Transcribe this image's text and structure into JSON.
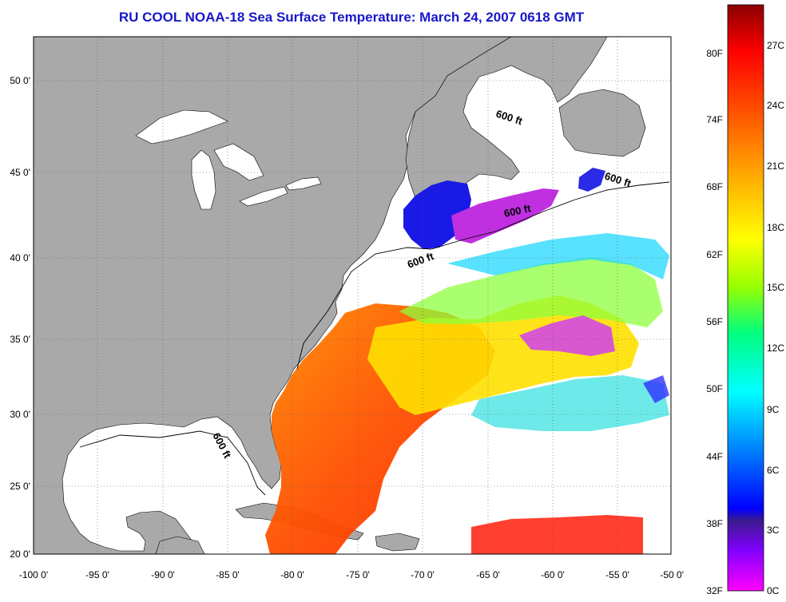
{
  "title": "RU COOL  NOAA-18  Sea Surface Temperature:  March 24, 2007 0618 GMT",
  "map": {
    "lon_ticks": [
      "-100 0'",
      "-95 0'",
      "-90 0'",
      "-85 0'",
      "-80 0'",
      "-75 0'",
      "-70 0'",
      "-65 0'",
      "-60 0'",
      "-55 0'",
      "-50 0'"
    ],
    "lat_ticks": [
      "50 0'",
      "45 0'",
      "40 0'",
      "35 0'",
      "30 0'",
      "25 0'",
      "20 0'"
    ],
    "isobath_labels": [
      "600 ft",
      "600 ft",
      "600 ft",
      "600 ft",
      "600 ft"
    ],
    "colors": {
      "land": "#a9a9a9",
      "no_data": "#ffffff",
      "frame": "#000000"
    }
  },
  "color_scale": {
    "fahrenheit": [
      "80F",
      "74F",
      "68F",
      "62F",
      "56F",
      "50F",
      "44F",
      "38F",
      "32F"
    ],
    "celsius": [
      "27C",
      "24C",
      "21C",
      "18C",
      "15C",
      "12C",
      "9C",
      "6C",
      "3C",
      "0C"
    ],
    "stops": [
      "#8b0000",
      "#ff0000",
      "#ff7f00",
      "#ffd700",
      "#ffff00",
      "#9aff00",
      "#00ff7f",
      "#00ffff",
      "#0080ff",
      "#0000ff",
      "#3a1a8c",
      "#8000ff",
      "#ff00ff"
    ]
  }
}
